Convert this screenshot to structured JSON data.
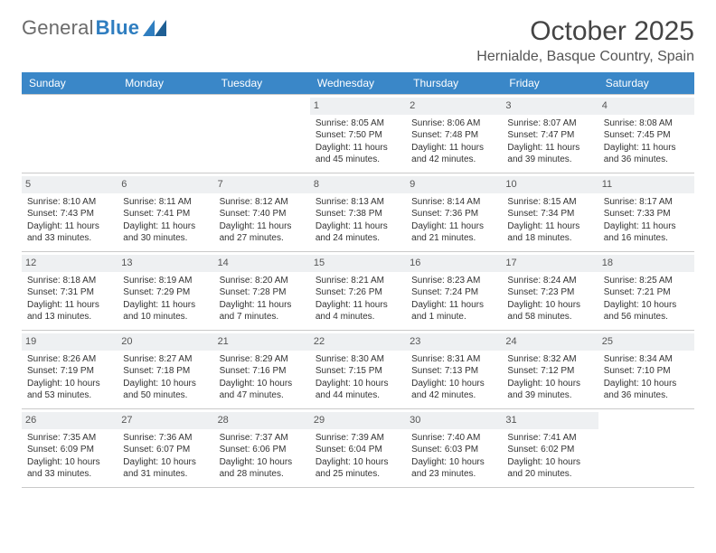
{
  "brand": {
    "part1": "General",
    "part2": "Blue",
    "logo_color": "#2f7ec0"
  },
  "title": "October 2025",
  "location": "Hernialde, Basque Country, Spain",
  "header_bg": "#3a87c8",
  "day_names": [
    "Sunday",
    "Monday",
    "Tuesday",
    "Wednesday",
    "Thursday",
    "Friday",
    "Saturday"
  ],
  "weeks": [
    [
      {
        "empty": true
      },
      {
        "empty": true
      },
      {
        "empty": true
      },
      {
        "day": "1",
        "sunrise": "Sunrise: 8:05 AM",
        "sunset": "Sunset: 7:50 PM",
        "daylight1": "Daylight: 11 hours",
        "daylight2": "and 45 minutes."
      },
      {
        "day": "2",
        "sunrise": "Sunrise: 8:06 AM",
        "sunset": "Sunset: 7:48 PM",
        "daylight1": "Daylight: 11 hours",
        "daylight2": "and 42 minutes."
      },
      {
        "day": "3",
        "sunrise": "Sunrise: 8:07 AM",
        "sunset": "Sunset: 7:47 PM",
        "daylight1": "Daylight: 11 hours",
        "daylight2": "and 39 minutes."
      },
      {
        "day": "4",
        "sunrise": "Sunrise: 8:08 AM",
        "sunset": "Sunset: 7:45 PM",
        "daylight1": "Daylight: 11 hours",
        "daylight2": "and 36 minutes."
      }
    ],
    [
      {
        "day": "5",
        "sunrise": "Sunrise: 8:10 AM",
        "sunset": "Sunset: 7:43 PM",
        "daylight1": "Daylight: 11 hours",
        "daylight2": "and 33 minutes."
      },
      {
        "day": "6",
        "sunrise": "Sunrise: 8:11 AM",
        "sunset": "Sunset: 7:41 PM",
        "daylight1": "Daylight: 11 hours",
        "daylight2": "and 30 minutes."
      },
      {
        "day": "7",
        "sunrise": "Sunrise: 8:12 AM",
        "sunset": "Sunset: 7:40 PM",
        "daylight1": "Daylight: 11 hours",
        "daylight2": "and 27 minutes."
      },
      {
        "day": "8",
        "sunrise": "Sunrise: 8:13 AM",
        "sunset": "Sunset: 7:38 PM",
        "daylight1": "Daylight: 11 hours",
        "daylight2": "and 24 minutes."
      },
      {
        "day": "9",
        "sunrise": "Sunrise: 8:14 AM",
        "sunset": "Sunset: 7:36 PM",
        "daylight1": "Daylight: 11 hours",
        "daylight2": "and 21 minutes."
      },
      {
        "day": "10",
        "sunrise": "Sunrise: 8:15 AM",
        "sunset": "Sunset: 7:34 PM",
        "daylight1": "Daylight: 11 hours",
        "daylight2": "and 18 minutes."
      },
      {
        "day": "11",
        "sunrise": "Sunrise: 8:17 AM",
        "sunset": "Sunset: 7:33 PM",
        "daylight1": "Daylight: 11 hours",
        "daylight2": "and 16 minutes."
      }
    ],
    [
      {
        "day": "12",
        "sunrise": "Sunrise: 8:18 AM",
        "sunset": "Sunset: 7:31 PM",
        "daylight1": "Daylight: 11 hours",
        "daylight2": "and 13 minutes."
      },
      {
        "day": "13",
        "sunrise": "Sunrise: 8:19 AM",
        "sunset": "Sunset: 7:29 PM",
        "daylight1": "Daylight: 11 hours",
        "daylight2": "and 10 minutes."
      },
      {
        "day": "14",
        "sunrise": "Sunrise: 8:20 AM",
        "sunset": "Sunset: 7:28 PM",
        "daylight1": "Daylight: 11 hours",
        "daylight2": "and 7 minutes."
      },
      {
        "day": "15",
        "sunrise": "Sunrise: 8:21 AM",
        "sunset": "Sunset: 7:26 PM",
        "daylight1": "Daylight: 11 hours",
        "daylight2": "and 4 minutes."
      },
      {
        "day": "16",
        "sunrise": "Sunrise: 8:23 AM",
        "sunset": "Sunset: 7:24 PM",
        "daylight1": "Daylight: 11 hours",
        "daylight2": "and 1 minute."
      },
      {
        "day": "17",
        "sunrise": "Sunrise: 8:24 AM",
        "sunset": "Sunset: 7:23 PM",
        "daylight1": "Daylight: 10 hours",
        "daylight2": "and 58 minutes."
      },
      {
        "day": "18",
        "sunrise": "Sunrise: 8:25 AM",
        "sunset": "Sunset: 7:21 PM",
        "daylight1": "Daylight: 10 hours",
        "daylight2": "and 56 minutes."
      }
    ],
    [
      {
        "day": "19",
        "sunrise": "Sunrise: 8:26 AM",
        "sunset": "Sunset: 7:19 PM",
        "daylight1": "Daylight: 10 hours",
        "daylight2": "and 53 minutes."
      },
      {
        "day": "20",
        "sunrise": "Sunrise: 8:27 AM",
        "sunset": "Sunset: 7:18 PM",
        "daylight1": "Daylight: 10 hours",
        "daylight2": "and 50 minutes."
      },
      {
        "day": "21",
        "sunrise": "Sunrise: 8:29 AM",
        "sunset": "Sunset: 7:16 PM",
        "daylight1": "Daylight: 10 hours",
        "daylight2": "and 47 minutes."
      },
      {
        "day": "22",
        "sunrise": "Sunrise: 8:30 AM",
        "sunset": "Sunset: 7:15 PM",
        "daylight1": "Daylight: 10 hours",
        "daylight2": "and 44 minutes."
      },
      {
        "day": "23",
        "sunrise": "Sunrise: 8:31 AM",
        "sunset": "Sunset: 7:13 PM",
        "daylight1": "Daylight: 10 hours",
        "daylight2": "and 42 minutes."
      },
      {
        "day": "24",
        "sunrise": "Sunrise: 8:32 AM",
        "sunset": "Sunset: 7:12 PM",
        "daylight1": "Daylight: 10 hours",
        "daylight2": "and 39 minutes."
      },
      {
        "day": "25",
        "sunrise": "Sunrise: 8:34 AM",
        "sunset": "Sunset: 7:10 PM",
        "daylight1": "Daylight: 10 hours",
        "daylight2": "and 36 minutes."
      }
    ],
    [
      {
        "day": "26",
        "sunrise": "Sunrise: 7:35 AM",
        "sunset": "Sunset: 6:09 PM",
        "daylight1": "Daylight: 10 hours",
        "daylight2": "and 33 minutes."
      },
      {
        "day": "27",
        "sunrise": "Sunrise: 7:36 AM",
        "sunset": "Sunset: 6:07 PM",
        "daylight1": "Daylight: 10 hours",
        "daylight2": "and 31 minutes."
      },
      {
        "day": "28",
        "sunrise": "Sunrise: 7:37 AM",
        "sunset": "Sunset: 6:06 PM",
        "daylight1": "Daylight: 10 hours",
        "daylight2": "and 28 minutes."
      },
      {
        "day": "29",
        "sunrise": "Sunrise: 7:39 AM",
        "sunset": "Sunset: 6:04 PM",
        "daylight1": "Daylight: 10 hours",
        "daylight2": "and 25 minutes."
      },
      {
        "day": "30",
        "sunrise": "Sunrise: 7:40 AM",
        "sunset": "Sunset: 6:03 PM",
        "daylight1": "Daylight: 10 hours",
        "daylight2": "and 23 minutes."
      },
      {
        "day": "31",
        "sunrise": "Sunrise: 7:41 AM",
        "sunset": "Sunset: 6:02 PM",
        "daylight1": "Daylight: 10 hours",
        "daylight2": "and 20 minutes."
      },
      {
        "empty": true
      }
    ]
  ]
}
